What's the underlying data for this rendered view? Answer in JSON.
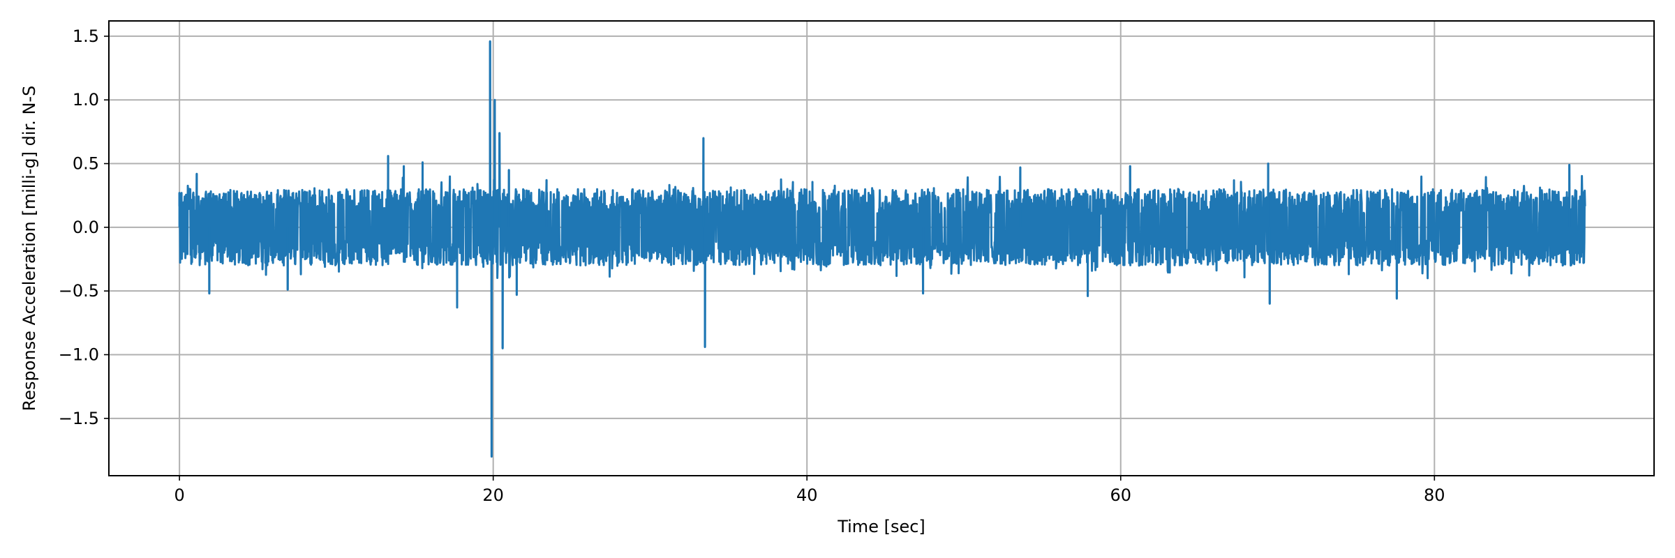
{
  "chart_data": {
    "type": "line",
    "title": "",
    "xlabel": "Time [sec]",
    "ylabel": "Response Acceleration [milli-g] dir. N-S",
    "xlim": [
      -4.5,
      94
    ],
    "ylim": [
      -1.95,
      1.62
    ],
    "x_ticks": [
      0,
      20,
      40,
      60,
      80
    ],
    "x_tick_labels": [
      "0",
      "20",
      "40",
      "60",
      "80"
    ],
    "y_ticks": [
      1.5,
      1.0,
      0.5,
      0.0,
      -0.5,
      -1.0,
      -1.5
    ],
    "y_tick_labels": [
      "1.5",
      "1.0",
      "0.5",
      "0.0",
      "−0.5",
      "−1.0",
      "−1.5"
    ],
    "grid": true,
    "series": [
      {
        "color": "#1f77b4",
        "x_range": [
          0,
          89.6
        ],
        "typical_band": [
          -0.3,
          0.3
        ],
        "peaks": [
          {
            "x": 0.0,
            "y": 0.27
          },
          {
            "x": 1.1,
            "y": 0.42
          },
          {
            "x": 1.9,
            "y": -0.52
          },
          {
            "x": 6.9,
            "y": -0.49
          },
          {
            "x": 13.3,
            "y": 0.56
          },
          {
            "x": 14.3,
            "y": 0.48
          },
          {
            "x": 15.5,
            "y": 0.51
          },
          {
            "x": 17.7,
            "y": -0.63
          },
          {
            "x": 19.8,
            "y": 1.46
          },
          {
            "x": 19.9,
            "y": -1.8
          },
          {
            "x": 20.1,
            "y": 1.0
          },
          {
            "x": 20.4,
            "y": 0.74
          },
          {
            "x": 20.6,
            "y": -0.95
          },
          {
            "x": 21.0,
            "y": 0.45
          },
          {
            "x": 21.5,
            "y": -0.53
          },
          {
            "x": 23.4,
            "y": 0.37
          },
          {
            "x": 33.4,
            "y": 0.7
          },
          {
            "x": 33.5,
            "y": -0.94
          },
          {
            "x": 47.4,
            "y": -0.52
          },
          {
            "x": 53.6,
            "y": 0.47
          },
          {
            "x": 57.9,
            "y": -0.54
          },
          {
            "x": 60.6,
            "y": 0.48
          },
          {
            "x": 69.4,
            "y": 0.5
          },
          {
            "x": 69.5,
            "y": -0.6
          },
          {
            "x": 77.6,
            "y": -0.56
          },
          {
            "x": 88.6,
            "y": 0.49
          },
          {
            "x": 89.5,
            "y": -0.28
          }
        ]
      }
    ]
  }
}
